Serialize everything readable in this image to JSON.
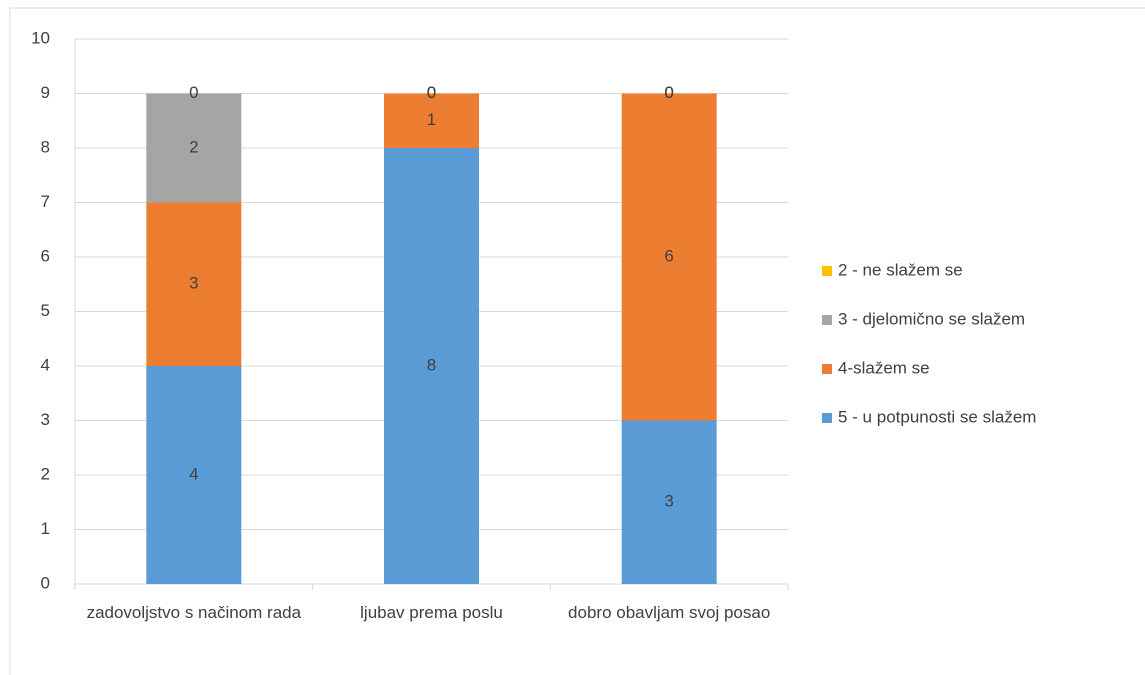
{
  "chart_data": {
    "type": "stacked_bar",
    "categories": [
      "zadovoljstvo s načinom rada",
      "ljubav prema poslu",
      "dobro obavljam svoj posao"
    ],
    "series": [
      {
        "name": "5 - u potpunosti se slažem",
        "color": "#5b9bd5",
        "values": [
          4,
          8,
          3
        ]
      },
      {
        "name": "4-slažem se",
        "color": "#ed7d31",
        "values": [
          3,
          1,
          6
        ]
      },
      {
        "name": "3 - djelomično se slažem",
        "color": "#a5a5a5",
        "values": [
          2,
          0,
          0
        ]
      },
      {
        "name": "2 - ne slažem se",
        "color": "#ffc000",
        "values": [
          0,
          0,
          0
        ]
      }
    ],
    "ylim": [
      0,
      10
    ],
    "yticks": [
      0,
      1,
      2,
      3,
      4,
      5,
      6,
      7,
      8,
      9,
      10
    ],
    "grid": true,
    "legend": "right",
    "data_labels": true
  }
}
